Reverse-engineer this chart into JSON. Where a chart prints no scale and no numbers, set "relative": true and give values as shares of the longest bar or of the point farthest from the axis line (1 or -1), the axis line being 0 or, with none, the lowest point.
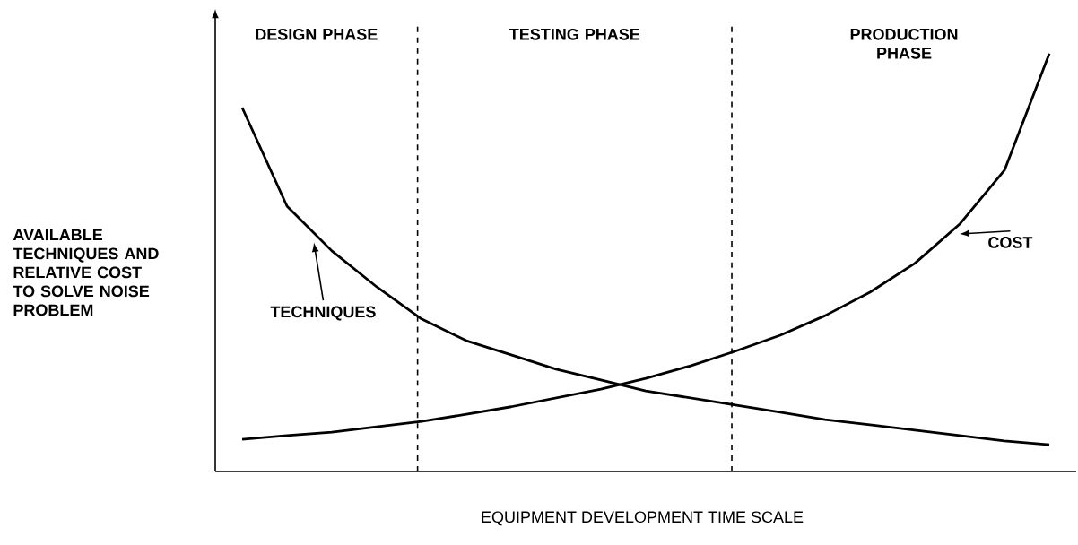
{
  "chart_data": {
    "type": "line",
    "relative": true,
    "xlabel": "EQUIPMENT DEVELOPMENT  TIME SCALE",
    "ylabel": "AVAILABLE TECHNIQUES AND RELATIVE COST TO SOLVE NOISE PROBLEM",
    "categories": [
      null,
      null,
      null,
      null,
      null,
      null,
      null,
      null,
      null,
      null,
      null,
      null,
      null,
      null,
      null,
      null,
      null,
      null,
      null
    ],
    "series": [
      {
        "name": "TECHNIQUES",
        "color": "#000000",
        "values": [
          0.871,
          0.635,
          0.528,
          0.442,
          0.365,
          0.313,
          0.279,
          0.245,
          0.219,
          0.193,
          0.176,
          0.159,
          0.142,
          0.124,
          0.112,
          0.099,
          0.086,
          0.073,
          0.064
        ]
      },
      {
        "name": "COST",
        "color": "#000000",
        "values": [
          0.077,
          0.086,
          0.094,
          0.107,
          0.12,
          0.137,
          0.155,
          0.176,
          0.197,
          0.223,
          0.253,
          0.288,
          0.326,
          0.373,
          0.429,
          0.498,
          0.592,
          0.721,
          1
        ]
      }
    ],
    "annotations": [
      "DESIGN PHASE",
      "TESTING PHASE",
      "PRODUCTION PHASE"
    ]
  }
}
